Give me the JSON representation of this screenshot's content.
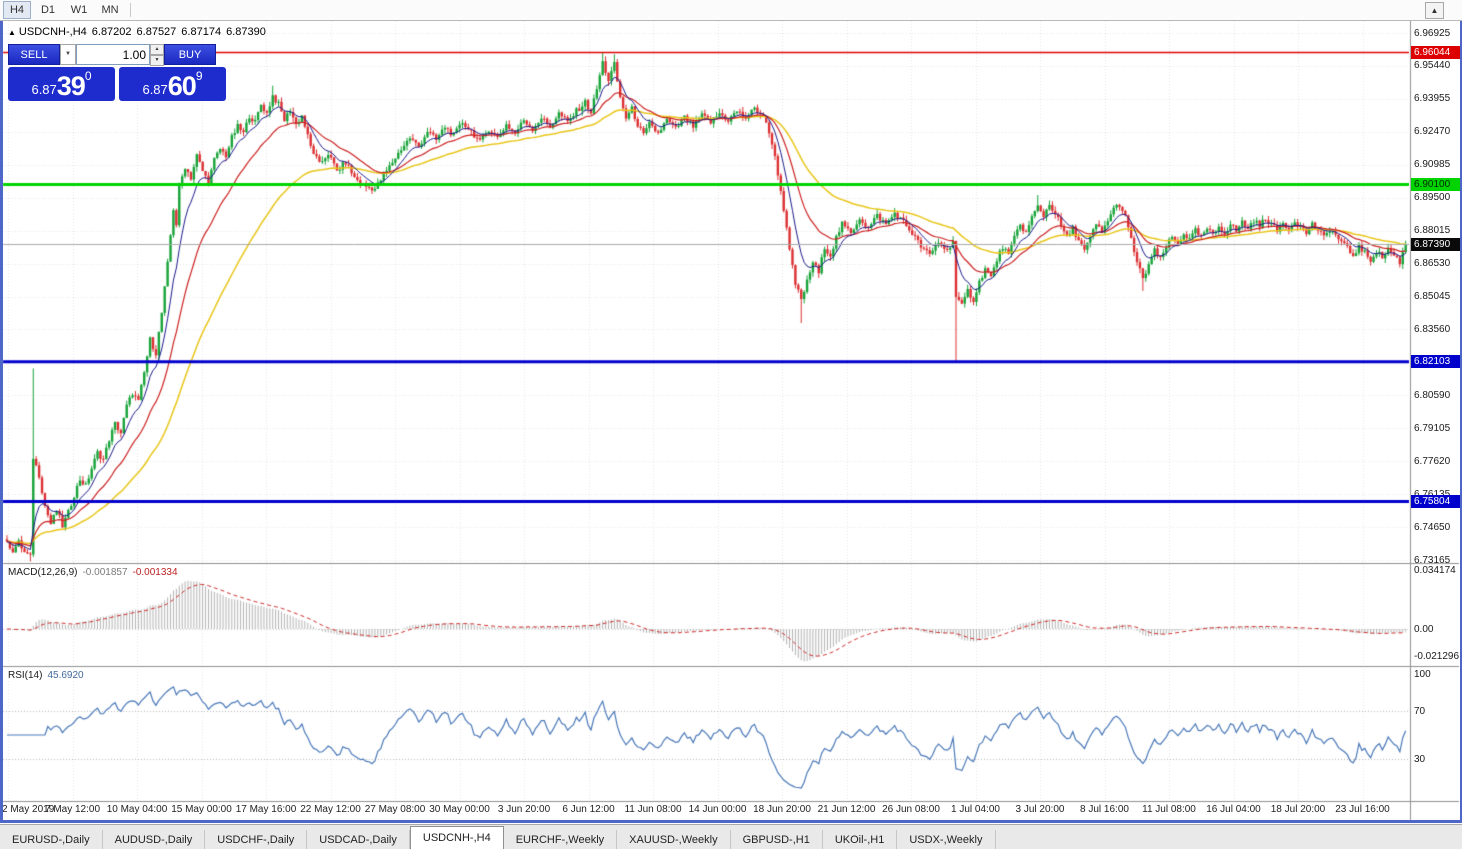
{
  "toolbar": {
    "timeframes": [
      {
        "label": "H4",
        "active": true
      },
      {
        "label": "D1",
        "active": false
      },
      {
        "label": "W1",
        "active": false
      },
      {
        "label": "MN",
        "active": false
      }
    ],
    "scroll_glyph": "▲"
  },
  "chart": {
    "header": {
      "arrow": "▲",
      "symbol": "USDCNH-,H4",
      "open": "6.87202",
      "high": "6.87527",
      "low": "6.87174",
      "close": "6.87390"
    },
    "trade": {
      "sell_label": "SELL",
      "buy_label": "BUY",
      "volume": "1.00",
      "combo_glyph": "▼",
      "spin_up": "▲",
      "spin_down": "▼",
      "sell_price": {
        "prefix": "6.87",
        "main": "39",
        "sup": "0"
      },
      "buy_price": {
        "prefix": "6.87",
        "main": "60",
        "sup": "9"
      }
    },
    "price_axis": {
      "labels": [
        "6.96925",
        "6.95440",
        "6.93955",
        "6.92470",
        "6.90985",
        "6.89500",
        "6.88015",
        "6.86530",
        "6.85045",
        "6.83560",
        "6.82075",
        "6.80590",
        "6.79105",
        "6.77620",
        "6.76135",
        "6.74650",
        "6.73165"
      ]
    },
    "levels": [
      {
        "value": 6.96044,
        "label": "6.96044",
        "color": "#dd0000",
        "text_color": "#ffffff",
        "line_width": 1.5
      },
      {
        "value": 6.901,
        "label": "6.90100",
        "color": "#00d400",
        "text_color": "#002800",
        "line_width": 3
      },
      {
        "value": 6.82103,
        "label": "6.82103",
        "color": "#0000cc",
        "text_color": "#ffffff",
        "line_width": 3
      },
      {
        "value": 6.75804,
        "label": "6.75804",
        "color": "#0000cc",
        "text_color": "#ffffff",
        "line_width": 3
      }
    ],
    "current_price": {
      "value": 6.8739,
      "label": "6.87390",
      "color": "#0a0a0a",
      "text_color": "#ffffff"
    },
    "time_axis": [
      "2 May 2019",
      "7 May 12:00",
      "10 May 04:00",
      "15 May 00:00",
      "17 May 16:00",
      "22 May 12:00",
      "27 May 08:00",
      "30 May 00:00",
      "3 Jun 20:00",
      "6 Jun 12:00",
      "11 Jun 08:00",
      "14 Jun 00:00",
      "18 Jun 20:00",
      "21 Jun 12:00",
      "26 Jun 08:00",
      "1 Jul 04:00",
      "3 Jul 20:00",
      "8 Jul 16:00",
      "11 Jul 08:00",
      "16 Jul 04:00",
      "18 Jul 20:00",
      "23 Jul 16:00"
    ]
  },
  "indicators": {
    "macd": {
      "name": "MACD(12,26,9)",
      "value1": "-0.001857",
      "value2": "-0.001334",
      "fast": 12,
      "slow": 26,
      "signal": 9,
      "axis_labels": [
        "0.034174",
        "0.00",
        "-0.021296"
      ],
      "histogram_color": "#b2b2b2",
      "signal_color": "#cc2a2a"
    },
    "rsi": {
      "name": "RSI(14)",
      "value": "45.6920",
      "period": 14,
      "axis_labels": [
        "100",
        "70",
        "30"
      ],
      "levels": [
        70,
        30
      ],
      "line_color": "#4a78b8"
    }
  },
  "chart_data": {
    "type": "candlestick",
    "symbol": "USDCNH",
    "timeframe": "H4",
    "bars": 480,
    "price_range_top": 6.96925,
    "price_range_bottom": 6.73165,
    "up_color": "#17a338",
    "down_color": "#dc3032",
    "ma_lines": [
      {
        "period": 8,
        "color": "#1a1a8c"
      },
      {
        "period": 21,
        "color": "#cc2222"
      },
      {
        "period": 50,
        "color": "#e8c517"
      }
    ],
    "close_anchors": [
      [
        0,
        6.74
      ],
      [
        2,
        6.736
      ],
      [
        4,
        6.7395
      ],
      [
        6,
        6.735
      ],
      [
        8,
        6.733
      ],
      [
        9,
        6.778
      ],
      [
        11,
        6.77
      ],
      [
        13,
        6.756
      ],
      [
        15,
        6.748
      ],
      [
        17,
        6.754
      ],
      [
        19,
        6.747
      ],
      [
        21,
        6.753
      ],
      [
        23,
        6.761
      ],
      [
        25,
        6.768
      ],
      [
        27,
        6.765
      ],
      [
        29,
        6.773
      ],
      [
        31,
        6.78
      ],
      [
        33,
        6.777
      ],
      [
        35,
        6.786
      ],
      [
        37,
        6.793
      ],
      [
        39,
        6.789
      ],
      [
        41,
        6.801
      ],
      [
        43,
        6.807
      ],
      [
        45,
        6.803
      ],
      [
        47,
        6.816
      ],
      [
        49,
        6.831
      ],
      [
        51,
        6.825
      ],
      [
        53,
        6.843
      ],
      [
        55,
        6.865
      ],
      [
        56,
        6.878
      ],
      [
        57,
        6.89
      ],
      [
        58,
        6.883
      ],
      [
        59,
        6.9
      ],
      [
        61,
        6.909
      ],
      [
        63,
        6.904
      ],
      [
        65,
        6.914
      ],
      [
        67,
        6.907
      ],
      [
        69,
        6.902
      ],
      [
        71,
        6.912
      ],
      [
        73,
        6.917
      ],
      [
        75,
        6.914
      ],
      [
        77,
        6.922
      ],
      [
        79,
        6.927
      ],
      [
        81,
        6.924
      ],
      [
        83,
        6.932
      ],
      [
        85,
        6.929
      ],
      [
        87,
        6.937
      ],
      [
        89,
        6.933
      ],
      [
        91,
        6.941
      ],
      [
        93,
        6.937
      ],
      [
        95,
        6.93
      ],
      [
        97,
        6.9345
      ],
      [
        99,
        6.928
      ],
      [
        101,
        6.932
      ],
      [
        104,
        6.918
      ],
      [
        107,
        6.91
      ],
      [
        110,
        6.915
      ],
      [
        113,
        6.907
      ],
      [
        116,
        6.911
      ],
      [
        119,
        6.904
      ],
      [
        123,
        6.9
      ],
      [
        126,
        6.899
      ],
      [
        129,
        6.905
      ],
      [
        132,
        6.911
      ],
      [
        135,
        6.917
      ],
      [
        138,
        6.922
      ],
      [
        141,
        6.918
      ],
      [
        144,
        6.925
      ],
      [
        147,
        6.921
      ],
      [
        150,
        6.927
      ],
      [
        153,
        6.923
      ],
      [
        156,
        6.929
      ],
      [
        159,
        6.925
      ],
      [
        162,
        6.92
      ],
      [
        165,
        6.926
      ],
      [
        168,
        6.922
      ],
      [
        171,
        6.928
      ],
      [
        174,
        6.924
      ],
      [
        177,
        6.93
      ],
      [
        180,
        6.926
      ],
      [
        183,
        6.931
      ],
      [
        186,
        6.927
      ],
      [
        189,
        6.933
      ],
      [
        192,
        6.929
      ],
      [
        195,
        6.934
      ],
      [
        198,
        6.938
      ],
      [
        200,
        6.9335
      ],
      [
        202,
        6.944
      ],
      [
        204,
        6.956
      ],
      [
        206,
        6.948
      ],
      [
        208,
        6.955
      ],
      [
        210,
        6.94
      ],
      [
        212,
        6.931
      ],
      [
        214,
        6.935
      ],
      [
        216,
        6.928
      ],
      [
        218,
        6.923
      ],
      [
        220,
        6.928
      ],
      [
        223,
        6.924
      ],
      [
        226,
        6.93
      ],
      [
        229,
        6.926
      ],
      [
        232,
        6.931
      ],
      [
        235,
        6.927
      ],
      [
        238,
        6.932
      ],
      [
        241,
        6.929
      ],
      [
        244,
        6.933
      ],
      [
        247,
        6.93
      ],
      [
        250,
        6.934
      ],
      [
        253,
        6.931
      ],
      [
        256,
        6.935
      ],
      [
        259,
        6.932
      ],
      [
        262,
        6.92
      ],
      [
        264,
        6.906
      ],
      [
        266,
        6.89
      ],
      [
        268,
        6.871
      ],
      [
        270,
        6.856
      ],
      [
        272,
        6.849
      ],
      [
        274,
        6.857
      ],
      [
        276,
        6.866
      ],
      [
        278,
        6.861
      ],
      [
        280,
        6.873
      ],
      [
        282,
        6.869
      ],
      [
        284,
        6.877
      ],
      [
        286,
        6.883
      ],
      [
        289,
        6.879
      ],
      [
        292,
        6.886
      ],
      [
        295,
        6.881
      ],
      [
        298,
        6.887
      ],
      [
        301,
        6.883
      ],
      [
        304,
        6.888
      ],
      [
        307,
        6.884
      ],
      [
        310,
        6.879
      ],
      [
        313,
        6.873
      ],
      [
        316,
        6.869
      ],
      [
        319,
        6.875
      ],
      [
        322,
        6.871
      ],
      [
        324,
        6.876
      ],
      [
        325,
        6.85
      ],
      [
        327,
        6.846
      ],
      [
        329,
        6.853
      ],
      [
        331,
        6.849
      ],
      [
        333,
        6.857
      ],
      [
        335,
        6.863
      ],
      [
        337,
        6.859
      ],
      [
        339,
        6.867
      ],
      [
        341,
        6.873
      ],
      [
        343,
        6.869
      ],
      [
        345,
        6.877
      ],
      [
        347,
        6.883
      ],
      [
        349,
        6.879
      ],
      [
        351,
        6.886
      ],
      [
        353,
        6.891
      ],
      [
        355,
        6.887
      ],
      [
        357,
        6.892
      ],
      [
        359,
        6.888
      ],
      [
        361,
        6.882
      ],
      [
        363,
        6.877
      ],
      [
        365,
        6.881
      ],
      [
        367,
        6.876
      ],
      [
        369,
        6.871
      ],
      [
        371,
        6.877
      ],
      [
        373,
        6.883
      ],
      [
        375,
        6.879
      ],
      [
        377,
        6.885
      ],
      [
        379,
        6.89
      ],
      [
        381,
        6.892
      ],
      [
        383,
        6.886
      ],
      [
        385,
        6.876
      ],
      [
        387,
        6.866
      ],
      [
        389,
        6.858
      ],
      [
        391,
        6.865
      ],
      [
        393,
        6.871
      ],
      [
        395,
        6.867
      ],
      [
        397,
        6.873
      ],
      [
        399,
        6.877
      ],
      [
        401,
        6.874
      ],
      [
        403,
        6.879
      ],
      [
        405,
        6.876
      ],
      [
        407,
        6.88
      ],
      [
        409,
        6.877
      ],
      [
        411,
        6.881
      ],
      [
        413,
        6.878
      ],
      [
        415,
        6.882
      ],
      [
        417,
        6.879
      ],
      [
        419,
        6.883
      ],
      [
        421,
        6.88
      ],
      [
        423,
        6.884
      ],
      [
        425,
        6.881
      ],
      [
        427,
        6.885
      ],
      [
        429,
        6.882
      ],
      [
        431,
        6.886
      ],
      [
        433,
        6.883
      ],
      [
        435,
        6.88
      ],
      [
        437,
        6.884
      ],
      [
        439,
        6.881
      ],
      [
        441,
        6.885
      ],
      [
        443,
        6.882
      ],
      [
        445,
        6.879
      ],
      [
        447,
        6.883
      ],
      [
        449,
        6.88
      ],
      [
        451,
        6.877
      ],
      [
        453,
        6.881
      ],
      [
        455,
        6.878
      ],
      [
        457,
        6.875
      ],
      [
        459,
        6.872
      ],
      [
        461,
        6.869
      ],
      [
        463,
        6.873
      ],
      [
        465,
        6.87
      ],
      [
        467,
        6.867
      ],
      [
        469,
        6.871
      ],
      [
        471,
        6.868
      ],
      [
        473,
        6.872
      ],
      [
        475,
        6.869
      ],
      [
        477,
        6.866
      ],
      [
        479,
        6.8739
      ]
    ],
    "wick_events": [
      {
        "i": 8,
        "l": 6.731
      },
      {
        "i": 9,
        "h": 6.818,
        "l": 6.733
      },
      {
        "i": 91,
        "h": 6.9455
      },
      {
        "i": 126,
        "l": 6.8975
      },
      {
        "i": 204,
        "h": 6.96044
      },
      {
        "i": 208,
        "h": 6.9597
      },
      {
        "i": 272,
        "l": 6.8385
      },
      {
        "i": 325,
        "h": 6.873,
        "l": 6.821
      },
      {
        "i": 353,
        "h": 6.8962
      },
      {
        "i": 389,
        "l": 6.853
      }
    ]
  },
  "tabs": [
    {
      "label": "EURUSD-,Daily",
      "active": false
    },
    {
      "label": "AUDUSD-,Daily",
      "active": false
    },
    {
      "label": "USDCHF-,Daily",
      "active": false
    },
    {
      "label": "USDCAD-,Daily",
      "active": false
    },
    {
      "label": "USDCNH-,H4",
      "active": true
    },
    {
      "label": "EURCHF-,Weekly",
      "active": false
    },
    {
      "label": "XAUUSD-,Weekly",
      "active": false
    },
    {
      "label": "GBPUSD-,H1",
      "active": false
    },
    {
      "label": "UKOil-,H1",
      "active": false
    },
    {
      "label": "USDX-,Weekly",
      "active": false
    }
  ]
}
